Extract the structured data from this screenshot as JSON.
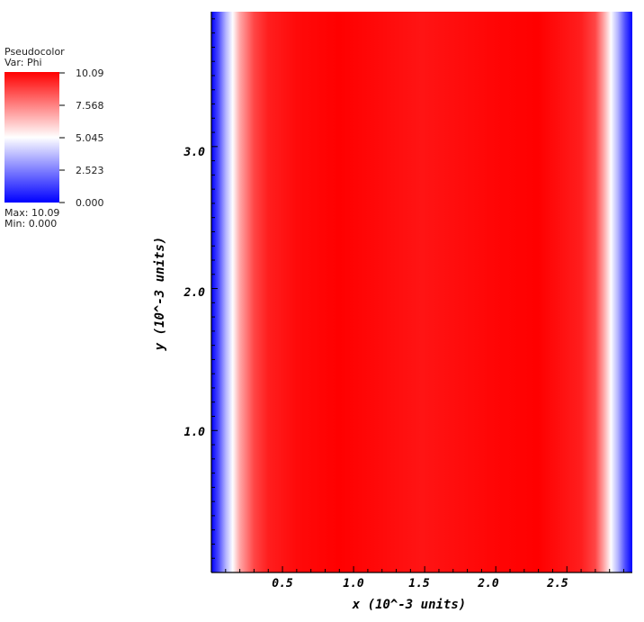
{
  "legend": {
    "plot_type": "Pseudocolor",
    "var_label": "Var: Phi",
    "ticks": [
      "10.09",
      "7.568",
      "5.045",
      "2.523",
      "0.000"
    ],
    "max_text": "Max:  10.09",
    "min_text": "Min:  0.000",
    "colors": {
      "high": "#ff0000",
      "mid": "#ffffff",
      "low": "#0000ff"
    }
  },
  "chart_data": {
    "type": "heatmap",
    "variable": "Phi",
    "colormap": "blue-white-red",
    "value_range": [
      0.0,
      10.09
    ],
    "xlabel": "x (10^-3 units)",
    "ylabel": "y (10^-3 units)",
    "xlim": [
      0.0,
      2.96
    ],
    "ylim": [
      0.0,
      3.95
    ],
    "x_ticks": [
      "0.5",
      "1.0",
      "1.5",
      "2.0",
      "2.5"
    ],
    "y_ticks": [
      "1.0",
      "2.0",
      "3.0"
    ],
    "profile_x": [
      0.0,
      0.05,
      0.1,
      0.15,
      0.2,
      0.3,
      0.4,
      0.6,
      0.9,
      1.48,
      2.0,
      2.3,
      2.6,
      2.7,
      2.76,
      2.81,
      2.86,
      2.91,
      2.96
    ],
    "profile_phi": [
      0.0,
      1.5,
      3.5,
      5.0,
      6.8,
      8.7,
      9.5,
      9.9,
      10.09,
      9.7,
      10.0,
      10.09,
      9.5,
      8.7,
      6.8,
      5.0,
      3.5,
      1.5,
      0.0
    ],
    "grid": false
  }
}
